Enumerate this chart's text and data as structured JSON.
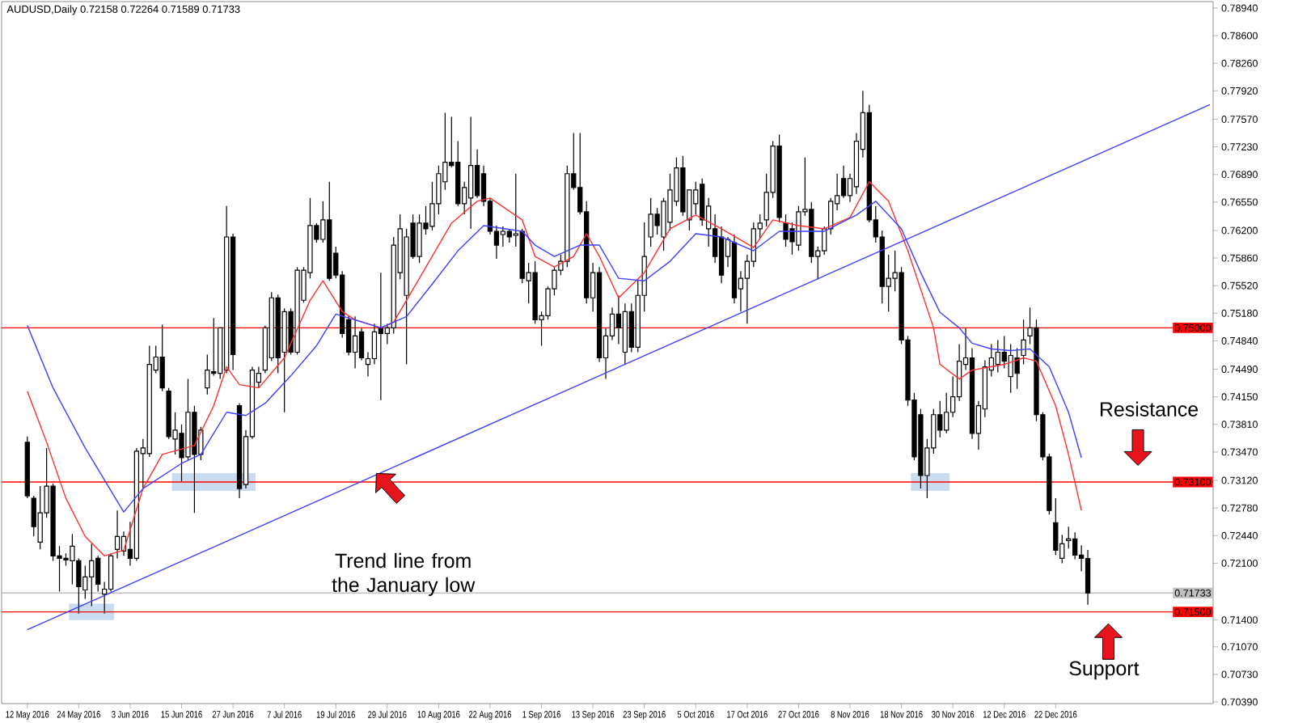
{
  "chart_data": {
    "type": "candlestick",
    "title": "AUDUSD,Daily  0.72158 0.72264 0.71589 0.71733",
    "color": "#000000",
    "categories": [
      "12 May 2016",
      null,
      null,
      null,
      null,
      null,
      null,
      null,
      "24 May 2016",
      null,
      null,
      null,
      null,
      null,
      null,
      null,
      "3 Jun 2016",
      null,
      null,
      null,
      null,
      null,
      null,
      null,
      "15 Jun 2016",
      null,
      null,
      null,
      null,
      null,
      null,
      null,
      "27 Jun 2016",
      null,
      null,
      null,
      null,
      null,
      null,
      null,
      "7 Jul 2016",
      null,
      null,
      null,
      null,
      null,
      null,
      null,
      "19 Jul 2016",
      null,
      null,
      null,
      null,
      null,
      null,
      null,
      "29 Jul 2016",
      null,
      null,
      null,
      null,
      null,
      null,
      null,
      "10 Aug 2016",
      null,
      null,
      null,
      null,
      null,
      null,
      null,
      "22 Aug 2016",
      null,
      null,
      null,
      null,
      null,
      null,
      null,
      "1 Sep 2016",
      null,
      null,
      null,
      null,
      null,
      null,
      null,
      "13 Sep 2016",
      null,
      null,
      null,
      null,
      null,
      null,
      null,
      "23 Sep 2016",
      null,
      null,
      null,
      null,
      null,
      null,
      null,
      "5 Oct 2016",
      null,
      null,
      null,
      null,
      null,
      null,
      null,
      "17 Oct 2016",
      null,
      null,
      null,
      null,
      null,
      null,
      null,
      "27 Oct 2016",
      null,
      null,
      null,
      null,
      null,
      null,
      null,
      "8 Nov 2016",
      null,
      null,
      null,
      null,
      null,
      null,
      null,
      "18 Nov 2016",
      null,
      null,
      null,
      null,
      null,
      null,
      null,
      "30 Nov 2016",
      null,
      null,
      null,
      null,
      null,
      null,
      null,
      "12 Dec 2016",
      null,
      null,
      null,
      null,
      null,
      null,
      null,
      "22 Dec 2016",
      null,
      null,
      null,
      null,
      null,
      null,
      null,
      null,
      null,
      null,
      null,
      null,
      null,
      null,
      null,
      null,
      null,
      null,
      null,
      null,
      null,
      null,
      null,
      null
    ],
    "ohlc": [
      [
        0.7359,
        0.7366,
        0.729,
        0.7293
      ],
      [
        0.729,
        0.7293,
        0.7243,
        0.7255
      ],
      [
        0.7236,
        0.7305,
        0.7227,
        0.7272
      ],
      [
        0.7272,
        0.7352,
        0.7266,
        0.7305
      ],
      [
        0.7305,
        0.7308,
        0.7213,
        0.7219
      ],
      [
        0.7219,
        0.7231,
        0.7175,
        0.7216
      ],
      [
        0.7216,
        0.7222,
        0.7207,
        0.7214
      ],
      [
        0.7213,
        0.7246,
        0.7184,
        0.7231
      ],
      [
        0.7213,
        0.7216,
        0.7148,
        0.7181
      ],
      [
        0.7177,
        0.7207,
        0.7166,
        0.7193
      ],
      [
        0.7193,
        0.7234,
        0.7157,
        0.7213
      ],
      [
        0.7216,
        0.7219,
        0.7175,
        0.7184
      ],
      [
        0.7172,
        0.7187,
        0.7148,
        0.7178
      ],
      [
        0.7178,
        0.7222,
        0.7175,
        0.7219
      ],
      [
        0.7227,
        0.7275,
        0.7216,
        0.7243
      ],
      [
        0.7225,
        0.7249,
        0.7219,
        0.7243
      ],
      [
        0.7227,
        0.7261,
        0.7207,
        0.7216
      ],
      [
        0.7216,
        0.7352,
        0.7213,
        0.7348
      ],
      [
        0.7345,
        0.7363,
        0.7302,
        0.7352
      ],
      [
        0.7345,
        0.7478,
        0.7341,
        0.7455
      ],
      [
        0.7448,
        0.7478,
        0.7444,
        0.7464
      ],
      [
        0.7464,
        0.7504,
        0.7422,
        0.7426
      ],
      [
        0.7422,
        0.7426,
        0.7363,
        0.7366
      ],
      [
        0.7363,
        0.7396,
        0.7344,
        0.7374
      ],
      [
        0.737,
        0.7381,
        0.7311,
        0.734
      ],
      [
        0.7341,
        0.7437,
        0.7337,
        0.7396
      ],
      [
        0.7396,
        0.7404,
        0.7272,
        0.7344
      ],
      [
        0.7344,
        0.7378,
        0.7337,
        0.7374
      ],
      [
        0.7426,
        0.7467,
        0.7418,
        0.7448
      ],
      [
        0.7446,
        0.7512,
        0.7441,
        0.7444
      ],
      [
        0.7444,
        0.75,
        0.7437,
        0.75
      ],
      [
        0.7448,
        0.765,
        0.7444,
        0.7612
      ],
      [
        0.7612,
        0.7616,
        0.7448,
        0.7467
      ],
      [
        0.7404,
        0.7407,
        0.729,
        0.7302
      ],
      [
        0.7307,
        0.7374,
        0.7302,
        0.7366
      ],
      [
        0.7366,
        0.7452,
        0.7363,
        0.7448
      ],
      [
        0.7433,
        0.7452,
        0.7426,
        0.7444
      ],
      [
        0.7448,
        0.7503,
        0.7444,
        0.75
      ],
      [
        0.7463,
        0.7544,
        0.7459,
        0.7537
      ],
      [
        0.7537,
        0.7541,
        0.7444,
        0.7463
      ],
      [
        0.747,
        0.7524,
        0.7396,
        0.752
      ],
      [
        0.752,
        0.7524,
        0.7467,
        0.747
      ],
      [
        0.747,
        0.7575,
        0.7467,
        0.7571
      ],
      [
        0.7534,
        0.7575,
        0.7531,
        0.7571
      ],
      [
        0.7568,
        0.766,
        0.7561,
        0.7626
      ],
      [
        0.7626,
        0.7629,
        0.7605,
        0.7609
      ],
      [
        0.7609,
        0.7656,
        0.7605,
        0.7633
      ],
      [
        0.7633,
        0.768,
        0.7558,
        0.7561
      ],
      [
        0.7592,
        0.76,
        0.7561,
        0.7565
      ],
      [
        0.7565,
        0.757,
        0.7488,
        0.7493
      ],
      [
        0.751,
        0.7515,
        0.7466,
        0.747
      ],
      [
        0.747,
        0.7514,
        0.745,
        0.749
      ],
      [
        0.7495,
        0.75,
        0.746,
        0.7463
      ],
      [
        0.7455,
        0.747,
        0.744,
        0.7462
      ],
      [
        0.7462,
        0.7505,
        0.7455,
        0.7495
      ],
      [
        0.75,
        0.7568,
        0.7411,
        0.7493
      ],
      [
        0.7493,
        0.7505,
        0.748,
        0.75
      ],
      [
        0.75,
        0.7612,
        0.7493,
        0.7602
      ],
      [
        0.7568,
        0.764,
        0.756,
        0.7622
      ],
      [
        0.754,
        0.7622,
        0.7455,
        0.7612
      ],
      [
        0.7629,
        0.764,
        0.7585,
        0.7588
      ],
      [
        0.7588,
        0.764,
        0.758,
        0.7629
      ],
      [
        0.7629,
        0.765,
        0.7615,
        0.7622
      ],
      [
        0.7625,
        0.768,
        0.762,
        0.7653
      ],
      [
        0.7653,
        0.77,
        0.764,
        0.769
      ],
      [
        0.768,
        0.7765,
        0.767,
        0.7704
      ],
      [
        0.7704,
        0.776,
        0.7698,
        0.77
      ],
      [
        0.7704,
        0.773,
        0.765,
        0.7653
      ],
      [
        0.7653,
        0.768,
        0.764,
        0.7673
      ],
      [
        0.766,
        0.776,
        0.7622,
        0.77
      ],
      [
        0.77,
        0.772,
        0.766,
        0.7663
      ],
      [
        0.769,
        0.77,
        0.765,
        0.7656
      ],
      [
        0.7656,
        0.766,
        0.7615,
        0.7619
      ],
      [
        0.7619,
        0.7626,
        0.7585,
        0.7602
      ],
      [
        0.7615,
        0.7625,
        0.76,
        0.7619
      ],
      [
        0.7619,
        0.7622,
        0.7605,
        0.7612
      ],
      [
        0.7614,
        0.769,
        0.76,
        0.7616
      ],
      [
        0.7619,
        0.7622,
        0.7555,
        0.7561
      ],
      [
        0.7558,
        0.758,
        0.753,
        0.7568
      ],
      [
        0.7568,
        0.7582,
        0.7505,
        0.751
      ],
      [
        0.751,
        0.752,
        0.7478,
        0.7515
      ],
      [
        0.7515,
        0.7551,
        0.751,
        0.7548
      ],
      [
        0.7548,
        0.7575,
        0.754,
        0.7571
      ],
      [
        0.7571,
        0.759,
        0.7565,
        0.7582
      ],
      [
        0.7582,
        0.77,
        0.7575,
        0.769
      ],
      [
        0.769,
        0.774,
        0.767,
        0.7673
      ],
      [
        0.7673,
        0.774,
        0.764,
        0.7643
      ],
      [
        0.7643,
        0.7656,
        0.753,
        0.7537
      ],
      [
        0.7537,
        0.758,
        0.752,
        0.7568
      ],
      [
        0.7568,
        0.7575,
        0.7458,
        0.7463
      ],
      [
        0.7463,
        0.75,
        0.7437,
        0.749
      ],
      [
        0.749,
        0.7525,
        0.7485,
        0.7517
      ],
      [
        0.7517,
        0.754,
        0.748,
        0.75
      ],
      [
        0.747,
        0.753,
        0.7455,
        0.752
      ],
      [
        0.752,
        0.753,
        0.747,
        0.7476
      ],
      [
        0.7476,
        0.756,
        0.747,
        0.754
      ],
      [
        0.754,
        0.763,
        0.752,
        0.7588
      ],
      [
        0.7612,
        0.766,
        0.76,
        0.764
      ],
      [
        0.764,
        0.7648,
        0.7615,
        0.7626
      ],
      [
        0.7612,
        0.766,
        0.7595,
        0.7656
      ],
      [
        0.763,
        0.769,
        0.762,
        0.767
      ],
      [
        0.7656,
        0.771,
        0.765,
        0.7697
      ],
      [
        0.7697,
        0.7712,
        0.7638,
        0.7643
      ],
      [
        0.7633,
        0.767,
        0.762,
        0.767
      ],
      [
        0.7653,
        0.768,
        0.764,
        0.767
      ],
      [
        0.7677,
        0.7684,
        0.7626,
        0.7633
      ],
      [
        0.7622,
        0.766,
        0.76,
        0.765
      ],
      [
        0.7622,
        0.764,
        0.758,
        0.7588
      ],
      [
        0.7612,
        0.7625,
        0.7555,
        0.7565
      ],
      [
        0.7588,
        0.7612,
        0.7575,
        0.7609
      ],
      [
        0.7605,
        0.7615,
        0.753,
        0.7537
      ],
      [
        0.7548,
        0.757,
        0.752,
        0.7561
      ],
      [
        0.7561,
        0.759,
        0.7505,
        0.7582
      ],
      [
        0.7582,
        0.763,
        0.7575,
        0.7622
      ],
      [
        0.7622,
        0.764,
        0.761,
        0.7629
      ],
      [
        0.7633,
        0.769,
        0.7625,
        0.7667
      ],
      [
        0.7667,
        0.773,
        0.766,
        0.7724
      ],
      [
        0.7724,
        0.7738,
        0.763,
        0.7636
      ],
      [
        0.7629,
        0.764,
        0.76,
        0.7609
      ],
      [
        0.7622,
        0.763,
        0.759,
        0.7606
      ],
      [
        0.7602,
        0.765,
        0.7595,
        0.7643
      ],
      [
        0.7643,
        0.771,
        0.7638,
        0.7646
      ],
      [
        0.7646,
        0.7655,
        0.758,
        0.7588
      ],
      [
        0.7588,
        0.76,
        0.756,
        0.7595
      ],
      [
        0.7595,
        0.7625,
        0.759,
        0.7622
      ],
      [
        0.7622,
        0.766,
        0.7615,
        0.7656
      ],
      [
        0.7653,
        0.769,
        0.7645,
        0.7663
      ],
      [
        0.7684,
        0.77,
        0.766,
        0.7663
      ],
      [
        0.7663,
        0.769,
        0.7655,
        0.7684
      ],
      [
        0.7674,
        0.774,
        0.7665,
        0.773
      ],
      [
        0.772,
        0.7792,
        0.771,
        0.7765
      ],
      [
        0.7765,
        0.7775,
        0.763,
        0.7633
      ],
      [
        0.7633,
        0.765,
        0.7605,
        0.7612
      ],
      [
        0.7612,
        0.762,
        0.753,
        0.7551
      ],
      [
        0.7551,
        0.759,
        0.752,
        0.7561
      ],
      [
        0.7561,
        0.7595,
        0.7545,
        0.7568
      ],
      [
        0.7568,
        0.7575,
        0.748,
        0.7485
      ],
      [
        0.7485,
        0.749,
        0.7404,
        0.7411
      ],
      [
        0.7411,
        0.742,
        0.7337,
        0.7341
      ],
      [
        0.7393,
        0.74,
        0.7302,
        0.7318
      ],
      [
        0.7318,
        0.7363,
        0.729,
        0.7352
      ],
      [
        0.7352,
        0.74,
        0.7345,
        0.7393
      ],
      [
        0.7393,
        0.741,
        0.7365,
        0.7374
      ],
      [
        0.7374,
        0.742,
        0.737,
        0.7396
      ],
      [
        0.7396,
        0.744,
        0.739,
        0.7415
      ],
      [
        0.7415,
        0.748,
        0.741,
        0.7459
      ],
      [
        0.7455,
        0.75,
        0.7448,
        0.7463
      ],
      [
        0.7463,
        0.7475,
        0.7363,
        0.737
      ],
      [
        0.737,
        0.741,
        0.735,
        0.7404
      ],
      [
        0.74,
        0.746,
        0.739,
        0.7452
      ],
      [
        0.7448,
        0.748,
        0.744,
        0.7463
      ],
      [
        0.7455,
        0.7485,
        0.7445,
        0.747
      ],
      [
        0.747,
        0.749,
        0.745,
        0.7459
      ],
      [
        0.744,
        0.748,
        0.742,
        0.7466
      ],
      [
        0.7463,
        0.7475,
        0.7425,
        0.7444
      ],
      [
        0.7466,
        0.751,
        0.7455,
        0.7485
      ],
      [
        0.749,
        0.7525,
        0.748,
        0.75
      ],
      [
        0.75,
        0.751,
        0.7385,
        0.7393
      ],
      [
        0.7393,
        0.7396,
        0.7337,
        0.7341
      ],
      [
        0.7341,
        0.7345,
        0.727,
        0.7275
      ],
      [
        0.726,
        0.729,
        0.722,
        0.7226
      ],
      [
        0.7216,
        0.7245,
        0.721,
        0.7234
      ],
      [
        0.7238,
        0.7255,
        0.7228,
        0.724
      ],
      [
        0.724,
        0.7248,
        0.7215,
        0.722
      ],
      [
        0.722,
        0.7232,
        0.72,
        0.7216
      ],
      [
        0.72158,
        0.72264,
        0.71589,
        0.71733
      ],
      null,
      null,
      null,
      null,
      null,
      null,
      null,
      null,
      null,
      null,
      null,
      null,
      null,
      null,
      null,
      null,
      null,
      null,
      null
    ],
    "series": [
      {
        "type": "line",
        "color": "#ff3030",
        "values": [
          0.7422,
          null,
          null,
          0.7359,
          null,
          null,
          0.729,
          null,
          null,
          0.7243,
          null,
          null,
          0.7219,
          null,
          null,
          0.7226,
          null,
          null,
          0.7302,
          null,
          null,
          0.7344,
          null,
          null,
          null,
          null,
          0.7355,
          null,
          null,
          0.7404,
          null,
          0.7452,
          null,
          0.743,
          null,
          null,
          0.7426,
          null,
          null,
          null,
          0.7463,
          null,
          null,
          null,
          0.7534,
          null,
          0.7558,
          null,
          null,
          0.752,
          null,
          0.751,
          null,
          null,
          null,
          0.75,
          null,
          0.7507,
          null,
          null,
          null,
          0.7561,
          null,
          null,
          null,
          null,
          0.7629,
          null,
          null,
          null,
          0.7656,
          null,
          0.766,
          null,
          null,
          null,
          null,
          0.7633,
          null,
          0.7588,
          null,
          null,
          0.7575,
          null,
          null,
          0.7588,
          null,
          0.7616,
          null,
          0.7588,
          null,
          null,
          0.7537,
          null,
          null,
          null,
          0.7568,
          null,
          null,
          null,
          0.7622,
          null,
          null,
          null,
          0.7639,
          null,
          null,
          null,
          0.7622,
          null,
          null,
          null,
          null,
          0.7599,
          null,
          null,
          0.7633,
          null,
          null,
          null,
          0.7626,
          null,
          null,
          null,
          0.7622,
          null,
          null,
          null,
          0.7636,
          null,
          null,
          0.768,
          null,
          null,
          0.7656,
          null,
          null,
          0.7595,
          null,
          null,
          null,
          0.75,
          0.7455,
          null,
          null,
          0.7437,
          null,
          0.7448,
          null,
          null,
          0.7452,
          null,
          0.7455,
          null,
          null,
          0.7463,
          null,
          0.7459,
          null,
          null,
          0.7404,
          null,
          0.7344,
          null,
          0.7275,
          null,
          null,
          null,
          null,
          null,
          null,
          null,
          null,
          null,
          null,
          null,
          null,
          null,
          null,
          null,
          null,
          null,
          null,
          null,
          null
        ]
      },
      {
        "type": "line",
        "color": "#4040ff",
        "values": [
          0.7503,
          null,
          null,
          null,
          0.7426,
          null,
          null,
          null,
          null,
          0.7352,
          null,
          null,
          null,
          null,
          null,
          0.7273,
          null,
          null,
          0.7302,
          null,
          null,
          null,
          null,
          null,
          0.7333,
          null,
          null,
          0.7344,
          null,
          null,
          null,
          0.7396,
          null,
          null,
          0.7392,
          null,
          null,
          0.7407,
          null,
          null,
          null,
          0.7441,
          null,
          null,
          null,
          0.7478,
          null,
          null,
          0.7517,
          null,
          null,
          null,
          null,
          null,
          null,
          0.75,
          null,
          null,
          null,
          0.7514,
          null,
          null,
          null,
          0.7554,
          null,
          null,
          null,
          0.7595,
          null,
          null,
          null,
          0.7626,
          null,
          null,
          null,
          null,
          null,
          0.7619,
          null,
          0.7602,
          null,
          null,
          0.7588,
          null,
          null,
          null,
          0.7602,
          null,
          null,
          0.7602,
          null,
          null,
          0.7561,
          null,
          null,
          null,
          0.7558,
          null,
          null,
          null,
          0.7582,
          null,
          null,
          null,
          0.7616,
          null,
          null,
          null,
          0.7612,
          null,
          null,
          null,
          null,
          0.7595,
          null,
          null,
          null,
          0.7619,
          null,
          null,
          null,
          null,
          null,
          null,
          0.7619,
          null,
          null,
          null,
          null,
          0.7639,
          null,
          null,
          0.7656,
          null,
          null,
          null,
          0.7622,
          null,
          null,
          0.7568,
          null,
          null,
          0.7519,
          null,
          null,
          0.75,
          null,
          0.7481,
          null,
          null,
          0.7474,
          null,
          null,
          0.7472,
          null,
          null,
          0.7474,
          null,
          null,
          0.7452,
          null,
          null,
          0.7396,
          null,
          0.734,
          null,
          null,
          null,
          null,
          null,
          null,
          null,
          null,
          null,
          null,
          null,
          null,
          null,
          null,
          null,
          null,
          null,
          null,
          null,
          null
        ]
      },
      {
        "type": "line",
        "color": "#4040ff",
        "values": [
          0.7128,
          null,
          null,
          null,
          null,
          null,
          null,
          null,
          null,
          null,
          null,
          null,
          null,
          null,
          null,
          null,
          null,
          null,
          null,
          null,
          null,
          null,
          null,
          null,
          null,
          null,
          null,
          null,
          null,
          null,
          null,
          null,
          null,
          null,
          null,
          null,
          null,
          null,
          null,
          null,
          null,
          null,
          null,
          null,
          null,
          null,
          null,
          null,
          null,
          null,
          null,
          null,
          null,
          null,
          null,
          null,
          null,
          null,
          null,
          null,
          null,
          null,
          null,
          null,
          null,
          null,
          null,
          null,
          null,
          null,
          null,
          null,
          null,
          null,
          null,
          null,
          null,
          null,
          null,
          null,
          null,
          null,
          null,
          null,
          null,
          null,
          null,
          null,
          null,
          null,
          null,
          null,
          null,
          null,
          null,
          null,
          null,
          null,
          null,
          null,
          null,
          null,
          null,
          null,
          null,
          null,
          null,
          null,
          null,
          null,
          null,
          null,
          null,
          null,
          null,
          null,
          null,
          null,
          null,
          null,
          null,
          null,
          null,
          null,
          null,
          null,
          null,
          null,
          null,
          null,
          null,
          null,
          null,
          null,
          null,
          null,
          null,
          null,
          null,
          null,
          null,
          null,
          null,
          null,
          null,
          null,
          null,
          null,
          null,
          null,
          null,
          null,
          null,
          null,
          null,
          null,
          null,
          null,
          null,
          null,
          null,
          null,
          null,
          null,
          null,
          null,
          null,
          null,
          null,
          null,
          null,
          null,
          null,
          null,
          null,
          null,
          null,
          null,
          null,
          null,
          null,
          null,
          null,
          null,
          0.7775
        ]
      }
    ],
    "ylim": [
      0.7037,
      0.7902
    ],
    "yticks": [
      {
        "value": 0.7894,
        "label": "0.78940"
      },
      {
        "value": 0.786,
        "label": "0.78600"
      },
      {
        "value": 0.7826,
        "label": "0.78260"
      },
      {
        "value": 0.7792,
        "label": "0.77920"
      },
      {
        "value": 0.7757,
        "label": "0.77570"
      },
      {
        "value": 0.7723,
        "label": "0.77230"
      },
      {
        "value": 0.7689,
        "label": "0.76890"
      },
      {
        "value": 0.7655,
        "label": "0.76550"
      },
      {
        "value": 0.762,
        "label": "0.76200"
      },
      {
        "value": 0.7586,
        "label": "0.75860"
      },
      {
        "value": 0.7552,
        "label": "0.75520"
      },
      {
        "value": 0.7518,
        "label": "0.75180"
      },
      {
        "value": 0.7484,
        "label": "0.74840"
      },
      {
        "value": 0.7449,
        "label": "0.74490"
      },
      {
        "value": 0.7415,
        "label": "0.74150"
      },
      {
        "value": 0.7381,
        "label": "0.73810"
      },
      {
        "value": 0.7347,
        "label": "0.73470"
      },
      {
        "value": 0.7312,
        "label": "0.73120"
      },
      {
        "value": 0.7278,
        "label": "0.72780"
      },
      {
        "value": 0.7244,
        "label": "0.72440"
      },
      {
        "value": 0.721,
        "label": "0.72100"
      },
      {
        "value": 0.714,
        "label": "0.71400"
      },
      {
        "value": 0.7107,
        "label": "0.71070"
      },
      {
        "value": 0.7073,
        "label": "0.70730"
      },
      {
        "value": 0.7039,
        "label": "0.70390"
      }
    ],
    "ref_lines": [
      {
        "axis": "y",
        "value": 0.75,
        "label": "0.75000",
        "color": "#ff0000"
      },
      {
        "axis": "y",
        "value": 0.731,
        "label": "0.73100",
        "color": "#ff0000"
      },
      {
        "axis": "y",
        "value": 0.715,
        "label": "0.71500",
        "color": "#ff0000"
      },
      {
        "axis": "y",
        "value": 0.71733,
        "label": "0.71733",
        "color": "#c0c0c0"
      }
    ],
    "annotations": [
      "Trend line from the January low",
      "Resistance",
      "Support"
    ]
  }
}
